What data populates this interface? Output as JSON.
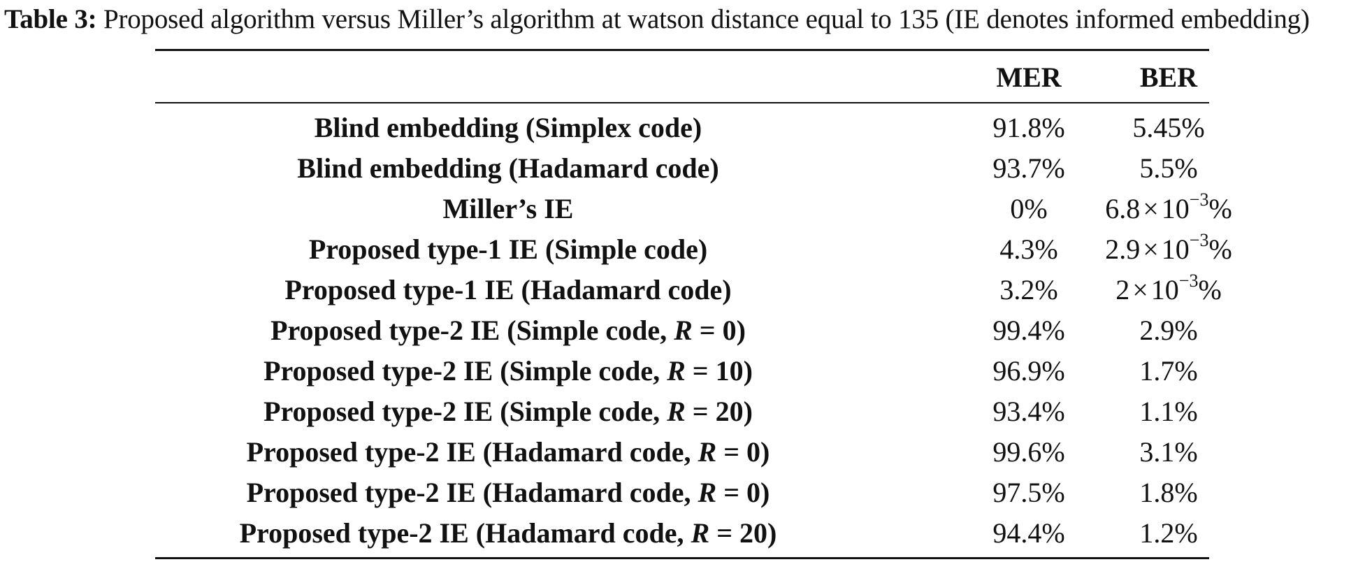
{
  "caption": {
    "label": "Table 3:",
    "text": " Proposed algorithm versus Miller’s algorithm at watson distance equal to 135 (IE denotes informed embedding)"
  },
  "header": {
    "method": "",
    "mer": "MER",
    "ber": "BER"
  },
  "rows": [
    {
      "method": "Blind embedding (Simplex code)",
      "mer": "91.8%",
      "ber": "5.45%"
    },
    {
      "method": "Blind embedding (Hadamard code)",
      "mer": "93.7%",
      "ber": "5.5%"
    },
    {
      "method": "Miller’s IE",
      "mer": "0%",
      "ber_mantissa": "6.8",
      "ber_exponent": "−3",
      "ber_unit": "%"
    },
    {
      "method": "Proposed type-1 IE (Simple code)",
      "mer": "4.3%",
      "ber_mantissa": "2.9",
      "ber_exponent": "−3",
      "ber_unit": "%"
    },
    {
      "method": "Proposed type-1 IE (Hadamard code)",
      "mer": "3.2%",
      "ber_mantissa": "2",
      "ber_exponent": "−3",
      "ber_unit": "%"
    },
    {
      "method_prefix": "Proposed type-2 IE (Simple code, ",
      "method_var": "R",
      "method_suffix": " = 0)",
      "mer": "99.4%",
      "ber": "2.9%"
    },
    {
      "method_prefix": "Proposed type-2 IE (Simple code, ",
      "method_var": "R",
      "method_suffix": " = 10)",
      "mer": "96.9%",
      "ber": "1.7%"
    },
    {
      "method_prefix": "Proposed type-2 IE (Simple code, ",
      "method_var": "R",
      "method_suffix": " = 20)",
      "mer": "93.4%",
      "ber": "1.1%"
    },
    {
      "method_prefix": "Proposed type-2 IE (Hadamard code, ",
      "method_var": "R",
      "method_suffix": " = 0)",
      "mer": "99.6%",
      "ber": "3.1%"
    },
    {
      "method_prefix": "Proposed type-2 IE (Hadamard code, ",
      "method_var": "R",
      "method_suffix": " = 0)",
      "mer": "97.5%",
      "ber": "1.8%"
    },
    {
      "method_prefix": "Proposed type-2 IE (Hadamard code, ",
      "method_var": "R",
      "method_suffix": " = 20)",
      "mer": "94.4%",
      "ber": "1.2%"
    }
  ],
  "symbols": {
    "times": "×",
    "ten": "10"
  }
}
